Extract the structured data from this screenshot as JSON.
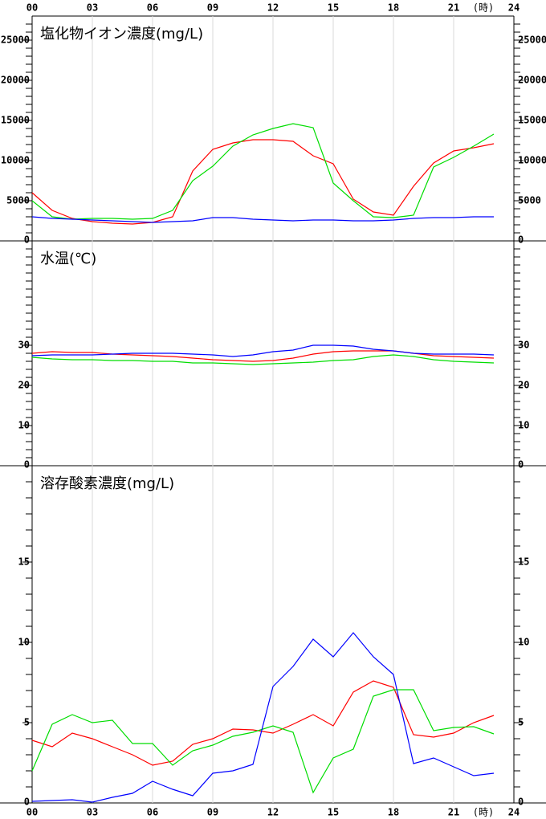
{
  "chart_data": [
    {
      "type": "line",
      "title": "塩化物イオン濃度(mg/L)",
      "x_unit_label": "(時)",
      "x": [
        0,
        1,
        2,
        3,
        4,
        5,
        6,
        7,
        8,
        9,
        10,
        11,
        12,
        13,
        14,
        15,
        16,
        17,
        18,
        19,
        20,
        21,
        22,
        23
      ],
      "xlim": [
        0,
        24
      ],
      "xticks": [
        {
          "value": 0,
          "label": "00"
        },
        {
          "value": 3,
          "label": "03"
        },
        {
          "value": 6,
          "label": "06"
        },
        {
          "value": 9,
          "label": "09"
        },
        12,
        15,
        18,
        21,
        24
      ],
      "ylim": [
        0,
        28000
      ],
      "yticks": [
        0,
        5000,
        10000,
        15000,
        20000,
        25000
      ],
      "yminor_step": 1000,
      "grid": true,
      "series": [
        {
          "color": "#ff0000",
          "values": [
            6000,
            3800,
            2800,
            2400,
            2200,
            2100,
            2300,
            3000,
            8700,
            11400,
            12200,
            12600,
            12600,
            12400,
            10600,
            9600,
            5200,
            3600,
            3200,
            6800,
            9700,
            11200,
            11600,
            12100
          ]
        },
        {
          "color": "#00dd00",
          "values": [
            5000,
            3000,
            2700,
            2800,
            2800,
            2700,
            2800,
            3800,
            7500,
            9300,
            11800,
            13200,
            14000,
            14600,
            14100,
            7200,
            5000,
            3000,
            2900,
            3200,
            9200,
            10400,
            11800,
            13300
          ]
        },
        {
          "color": "#0000ff",
          "values": [
            3000,
            2800,
            2700,
            2600,
            2500,
            2400,
            2300,
            2400,
            2500,
            2900,
            2900,
            2700,
            2600,
            2500,
            2600,
            2600,
            2500,
            2500,
            2600,
            2800,
            2900,
            2900,
            3000,
            3000
          ]
        }
      ]
    },
    {
      "type": "line",
      "title": "水温(℃)",
      "x": [
        0,
        1,
        2,
        3,
        4,
        5,
        6,
        7,
        8,
        9,
        10,
        11,
        12,
        13,
        14,
        15,
        16,
        17,
        18,
        19,
        20,
        21,
        22,
        23
      ],
      "xlim": [
        0,
        24
      ],
      "xticks": [
        3,
        6,
        9,
        12,
        15,
        18,
        21
      ],
      "ylim": [
        0,
        56
      ],
      "yticks": [
        0,
        10,
        20,
        30
      ],
      "yminor_step": 2,
      "grid": true,
      "series": [
        {
          "color": "#ff0000",
          "values": [
            28,
            28.4,
            28.2,
            28.2,
            27.8,
            27.6,
            27.4,
            27.2,
            26.8,
            26.4,
            26.2,
            26,
            26.2,
            26.8,
            27.8,
            28.4,
            28.6,
            28.6,
            28.6,
            28,
            27.4,
            27.2,
            27,
            26.8
          ]
        },
        {
          "color": "#00dd00",
          "values": [
            27,
            26.6,
            26.4,
            26.4,
            26.2,
            26.2,
            26,
            26,
            25.6,
            25.6,
            25.4,
            25.2,
            25.4,
            25.6,
            25.8,
            26.2,
            26.4,
            27.2,
            27.6,
            27.2,
            26.4,
            26,
            25.8,
            25.6
          ]
        },
        {
          "color": "#0000ff",
          "values": [
            27.4,
            27.6,
            27.6,
            27.6,
            27.8,
            28,
            28,
            28,
            27.8,
            27.6,
            27.2,
            27.6,
            28.4,
            28.8,
            30,
            30,
            29.8,
            29,
            28.6,
            28,
            27.8,
            27.8,
            27.8,
            27.6
          ]
        }
      ]
    },
    {
      "type": "line",
      "title": "溶存酸素濃度(mg/L)",
      "x_unit_label": "(時)",
      "x": [
        0,
        1,
        2,
        3,
        4,
        5,
        6,
        7,
        8,
        9,
        10,
        11,
        12,
        13,
        14,
        15,
        16,
        17,
        18,
        19,
        20,
        21,
        22,
        23
      ],
      "xlim": [
        0,
        24
      ],
      "xticks": [
        {
          "value": 0,
          "label": "00"
        },
        {
          "value": 3,
          "label": "03"
        },
        {
          "value": 6,
          "label": "06"
        },
        {
          "value": 9,
          "label": "09"
        },
        12,
        15,
        18,
        21,
        24
      ],
      "ylim": [
        0,
        21
      ],
      "yticks": [
        0,
        5,
        10,
        15
      ],
      "yminor_step": 1,
      "grid": true,
      "series": [
        {
          "color": "#ff0000",
          "values": [
            3.9,
            3.5,
            4.35,
            4,
            3.5,
            3,
            2.35,
            2.6,
            3.65,
            4,
            4.6,
            4.55,
            4.35,
            4.9,
            5.5,
            4.8,
            6.9,
            7.6,
            7.2,
            4.25,
            4.1,
            4.35,
            5,
            5.45
          ]
        },
        {
          "color": "#00dd00",
          "values": [
            2,
            4.9,
            5.5,
            5,
            5.15,
            3.7,
            3.7,
            2.35,
            3.25,
            3.6,
            4.15,
            4.4,
            4.8,
            4.4,
            0.65,
            2.8,
            3.35,
            6.65,
            7.05,
            7.05,
            4.5,
            4.7,
            4.75,
            4.3
          ]
        },
        {
          "color": "#0000ff",
          "values": [
            0.1,
            0.15,
            0.2,
            0.05,
            0.35,
            0.6,
            1.35,
            0.85,
            0.45,
            1.85,
            2,
            2.4,
            7.25,
            8.5,
            10.2,
            9.1,
            10.6,
            9.1,
            8,
            2.45,
            2.8,
            2.25,
            1.7,
            1.85
          ]
        }
      ]
    }
  ]
}
